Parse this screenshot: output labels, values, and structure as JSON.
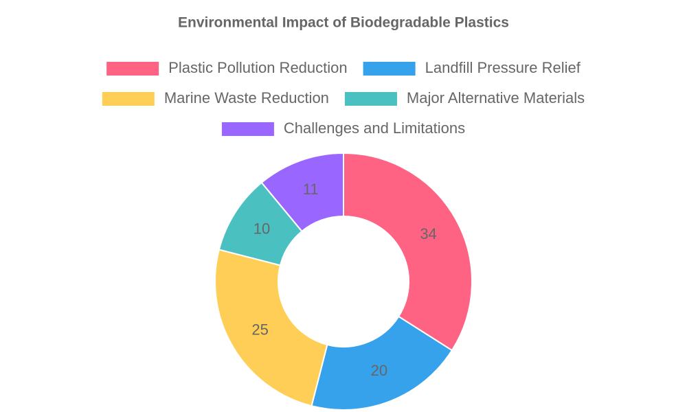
{
  "chart_data": {
    "type": "doughnut",
    "title": "Environmental Impact of Biodegradable Plastics",
    "categories": [
      "Plastic Pollution Reduction",
      "Landfill Pressure Relief",
      "Marine Waste Reduction",
      "Major Alternative Materials",
      "Challenges and Limitations"
    ],
    "values": [
      34,
      20,
      25,
      10,
      11
    ],
    "colors": [
      "#ff6384",
      "#36a2eb",
      "#ffce56",
      "#4bc0c0",
      "#9966ff"
    ],
    "legend": "top"
  }
}
